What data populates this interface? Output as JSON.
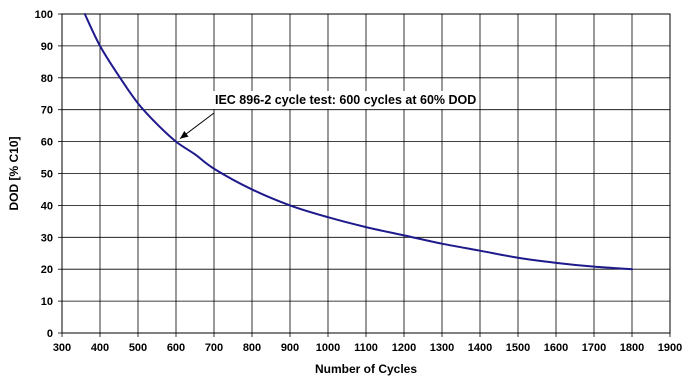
{
  "chart_data": {
    "type": "line",
    "title": "",
    "xlabel": "Number of Cycles",
    "ylabel": "DOD [% C10]",
    "xlim": [
      300,
      1900
    ],
    "ylim": [
      0,
      100
    ],
    "x_ticks": [
      300,
      400,
      500,
      600,
      700,
      800,
      900,
      1000,
      1100,
      1200,
      1300,
      1400,
      1500,
      1600,
      1700,
      1800,
      1900
    ],
    "y_ticks": [
      0,
      10,
      20,
      30,
      40,
      50,
      60,
      70,
      80,
      90,
      100
    ],
    "grid": true,
    "legend": "none",
    "series": [
      {
        "color": "#1f1a8c",
        "x": [
          360,
          400,
          450,
          500,
          550,
          600,
          650,
          700,
          800,
          900,
          1000,
          1100,
          1200,
          1300,
          1400,
          1500,
          1600,
          1700,
          1800
        ],
        "y": [
          100,
          90,
          80.5,
          72,
          65.5,
          60,
          56,
          51.5,
          45,
          40,
          36.3,
          33.2,
          30.6,
          28,
          25.8,
          23.6,
          22,
          20.8,
          20
        ]
      }
    ],
    "annotation": {
      "text": "IEC 896-2 cycle test: 600 cycles at 60% DOD",
      "point": {
        "x": 600,
        "y": 60
      }
    }
  }
}
